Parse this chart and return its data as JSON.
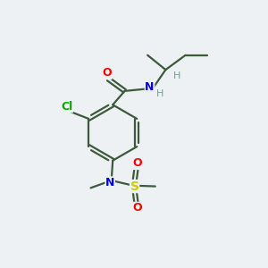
{
  "background_color": "#eef1f3",
  "bond_color": "#3d5a3d",
  "atom_colors": {
    "O": "#ff0000",
    "N": "#0000ee",
    "Cl": "#00aa00",
    "S": "#cccc00",
    "H": "#7a9898",
    "C": "#3d5a3d"
  },
  "figsize": [
    3.0,
    3.0
  ],
  "dpi": 100
}
